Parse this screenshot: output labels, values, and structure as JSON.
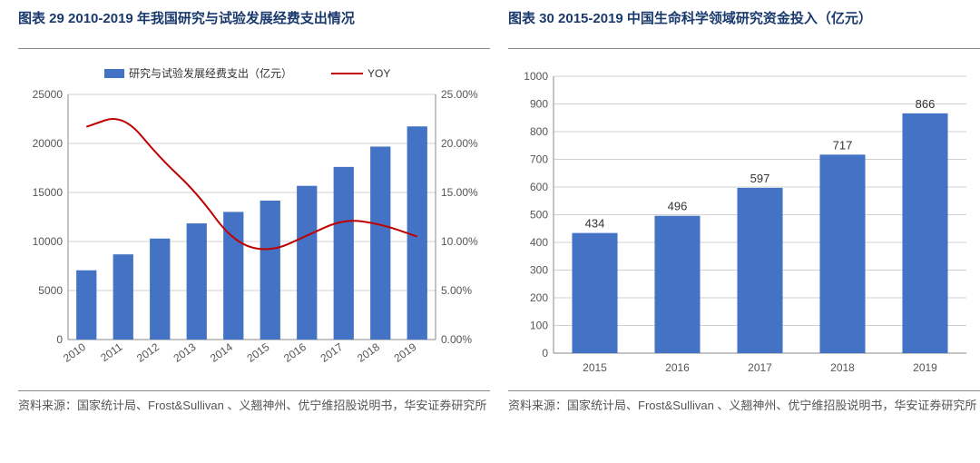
{
  "left": {
    "title": "图表 29 2010-2019 年我国研究与试验发展经费支出情况",
    "source": "资料来源：国家统计局、Frost&Sullivan 、义翘神州、优宁维招股说明书，华安证券研究所",
    "chart": {
      "type": "bar+line",
      "legend_bar": "研究与试验发展经费支出（亿元）",
      "legend_line": "YOY",
      "categories": [
        "2010",
        "2011",
        "2012",
        "2013",
        "2014",
        "2015",
        "2016",
        "2017",
        "2018",
        "2019"
      ],
      "bar_values": [
        7063,
        8687,
        10298,
        11847,
        13016,
        14170,
        15677,
        17606,
        19678,
        21737
      ],
      "line_values": [
        21.7,
        23.0,
        18.5,
        15.0,
        9.9,
        8.9,
        10.6,
        12.3,
        11.8,
        10.5
      ],
      "y1_ticks": [
        0,
        5000,
        10000,
        15000,
        20000,
        25000
      ],
      "y2_ticks": [
        0,
        5,
        10,
        15,
        20,
        25
      ],
      "y1_max": 25000,
      "y2_max": 25,
      "bar_color": "#4472c4",
      "line_color": "#c00000",
      "grid_color": "#d0d0d0",
      "axis_color": "#888888",
      "text_color": "#555555",
      "background": "#ffffff",
      "label_fontsize": 12
    }
  },
  "right": {
    "title": "图表 30 2015-2019 中国生命科学领域研究资金投入（亿元）",
    "source": "资料来源：国家统计局、Frost&Sullivan 、义翘神州、优宁维招股说明书，华安证券研究所",
    "chart": {
      "type": "bar",
      "categories": [
        "2015",
        "2016",
        "2017",
        "2018",
        "2019"
      ],
      "values": [
        434,
        496,
        597,
        717,
        866
      ],
      "y_ticks": [
        0,
        100,
        200,
        300,
        400,
        500,
        600,
        700,
        800,
        900,
        1000
      ],
      "y_max": 1000,
      "bar_color": "#4472c4",
      "grid_color": "#d0d0d0",
      "axis_color": "#888888",
      "text_color": "#555555",
      "background": "#ffffff",
      "label_fontsize": 13,
      "bar_width_ratio": 0.55
    }
  }
}
